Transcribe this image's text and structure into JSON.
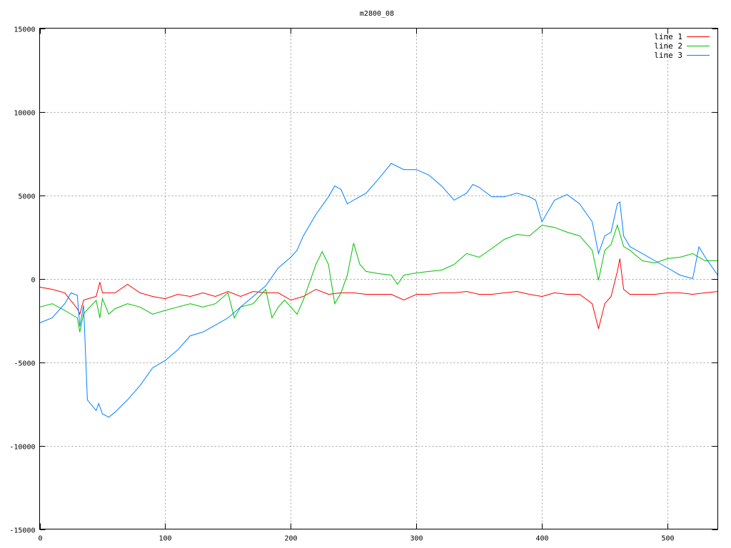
{
  "chart_data": {
    "type": "line",
    "title": "m2800_08",
    "xlabel": "",
    "ylabel": "",
    "xlim": [
      0,
      540
    ],
    "ylim": [
      -15000,
      15000
    ],
    "xticks": [
      0,
      100,
      200,
      300,
      400,
      500
    ],
    "yticks": [
      -15000,
      -10000,
      -5000,
      0,
      5000,
      10000,
      15000
    ],
    "grid": true,
    "legend_position": "top-right",
    "series": [
      {
        "name": "line 1",
        "color": "#ff0000",
        "x": [
          0,
          10,
          20,
          30,
          32,
          35,
          45,
          48,
          50,
          60,
          70,
          80,
          90,
          100,
          110,
          120,
          130,
          140,
          150,
          160,
          170,
          180,
          190,
          200,
          210,
          220,
          230,
          240,
          250,
          260,
          270,
          280,
          290,
          300,
          310,
          320,
          330,
          340,
          350,
          360,
          370,
          380,
          390,
          400,
          410,
          420,
          430,
          440,
          445,
          450,
          455,
          460,
          462,
          465,
          470,
          480,
          490,
          500,
          510,
          520,
          530,
          540
        ],
        "y": [
          -510,
          -640,
          -850,
          -1800,
          -2130,
          -1280,
          -1070,
          -210,
          -850,
          -850,
          -340,
          -850,
          -1070,
          -1200,
          -940,
          -1070,
          -850,
          -1070,
          -770,
          -1070,
          -770,
          -850,
          -850,
          -1280,
          -1070,
          -640,
          -940,
          -850,
          -850,
          -940,
          -940,
          -940,
          -1280,
          -940,
          -940,
          -850,
          -850,
          -770,
          -940,
          -940,
          -850,
          -770,
          -940,
          -1070,
          -850,
          -940,
          -940,
          -1500,
          -3000,
          -1500,
          -1070,
          430,
          1200,
          -640,
          -940,
          -940,
          -940,
          -850,
          -850,
          -940,
          -850,
          -770
        ]
      },
      {
        "name": "line 2",
        "color": "#00c000",
        "x": [
          0,
          10,
          20,
          30,
          32,
          35,
          45,
          48,
          50,
          55,
          60,
          70,
          80,
          90,
          100,
          110,
          120,
          130,
          140,
          150,
          155,
          160,
          170,
          175,
          180,
          185,
          190,
          195,
          200,
          205,
          210,
          220,
          225,
          230,
          235,
          240,
          245,
          250,
          255,
          260,
          270,
          280,
          285,
          290,
          300,
          310,
          320,
          330,
          340,
          350,
          360,
          370,
          380,
          390,
          400,
          410,
          420,
          430,
          440,
          445,
          450,
          455,
          460,
          465,
          470,
          480,
          490,
          500,
          510,
          520,
          530,
          540
        ],
        "y": [
          -1700,
          -1500,
          -1900,
          -2350,
          -3200,
          -2100,
          -1300,
          -2350,
          -1200,
          -2130,
          -1800,
          -1500,
          -1700,
          -2130,
          -1900,
          -1700,
          -1500,
          -1700,
          -1500,
          -850,
          -2350,
          -1700,
          -1500,
          -1070,
          -640,
          -2350,
          -1700,
          -1280,
          -1700,
          -2130,
          -1280,
          850,
          1620,
          850,
          -1500,
          -850,
          210,
          2130,
          850,
          430,
          300,
          210,
          -340,
          210,
          340,
          430,
          510,
          850,
          1500,
          1280,
          1800,
          2350,
          2650,
          2560,
          3200,
          3070,
          2780,
          2560,
          1700,
          -100,
          1700,
          2050,
          3200,
          1920,
          1700,
          1070,
          940,
          1200,
          1280,
          1500,
          1070,
          1070
        ]
      },
      {
        "name": "line 3",
        "color": "#0080ff",
        "x": [
          0,
          10,
          20,
          25,
          30,
          32,
          35,
          38,
          45,
          47,
          50,
          55,
          60,
          70,
          80,
          90,
          100,
          110,
          120,
          130,
          140,
          150,
          160,
          170,
          180,
          190,
          200,
          205,
          210,
          220,
          230,
          235,
          240,
          245,
          250,
          260,
          270,
          280,
          290,
          300,
          310,
          320,
          330,
          340,
          345,
          350,
          360,
          370,
          380,
          390,
          395,
          400,
          410,
          420,
          430,
          440,
          445,
          450,
          455,
          460,
          462,
          465,
          470,
          480,
          490,
          500,
          510,
          520,
          525,
          530,
          540
        ],
        "y": [
          -2650,
          -2350,
          -1500,
          -850,
          -1000,
          -2860,
          -1600,
          -7260,
          -7900,
          -7480,
          -8100,
          -8300,
          -8000,
          -7260,
          -6400,
          -5340,
          -4900,
          -4270,
          -3420,
          -3200,
          -2780,
          -2350,
          -1700,
          -1070,
          -430,
          640,
          1280,
          1700,
          2560,
          3840,
          4900,
          5550,
          5340,
          4480,
          4700,
          5120,
          5980,
          6900,
          6530,
          6530,
          6200,
          5550,
          4700,
          5120,
          5640,
          5470,
          4900,
          4900,
          5120,
          4900,
          4700,
          3400,
          4700,
          5040,
          4480,
          3400,
          1500,
          2560,
          2780,
          4480,
          4600,
          2560,
          1920,
          1500,
          1070,
          640,
          210,
          0,
          1900,
          1280,
          200
        ]
      }
    ]
  }
}
